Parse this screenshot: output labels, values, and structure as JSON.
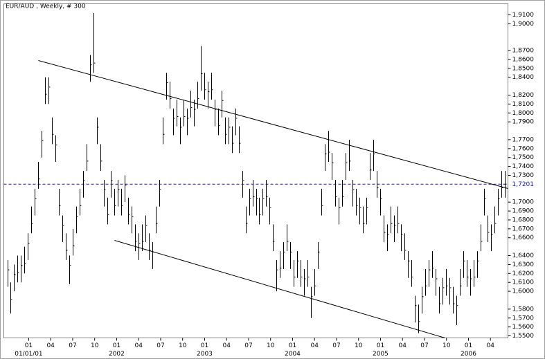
{
  "chart_data": {
    "type": "ohlc",
    "title": "EUR/AUD , Weekly, # 300",
    "color": "#000000",
    "xlim": [
      2000.717,
      2006.449
    ],
    "ylim": [
      1.5477,
      1.9224
    ],
    "xticks": [
      {
        "value": 2001.0,
        "label": "01"
      },
      {
        "value": 2001.25,
        "label": "04"
      },
      {
        "value": 2001.5,
        "label": "07"
      },
      {
        "value": 2001.75,
        "label": "10"
      },
      {
        "value": 2002.0,
        "label": "01"
      },
      {
        "value": 2002.25,
        "label": "04"
      },
      {
        "value": 2002.5,
        "label": "07"
      },
      {
        "value": 2002.75,
        "label": "10"
      },
      {
        "value": 2003.0,
        "label": "01"
      },
      {
        "value": 2003.25,
        "label": "04"
      },
      {
        "value": 2003.5,
        "label": "07"
      },
      {
        "value": 2003.75,
        "label": "10"
      },
      {
        "value": 2004.0,
        "label": "01"
      },
      {
        "value": 2004.25,
        "label": "04"
      },
      {
        "value": 2004.5,
        "label": "07"
      },
      {
        "value": 2004.75,
        "label": "10"
      },
      {
        "value": 2005.0,
        "label": "01"
      },
      {
        "value": 2005.25,
        "label": "04"
      },
      {
        "value": 2005.5,
        "label": "07"
      },
      {
        "value": 2005.75,
        "label": "10"
      },
      {
        "value": 2006.0,
        "label": "01"
      },
      {
        "value": 2006.25,
        "label": "04"
      }
    ],
    "xticks_major": [
      {
        "value": 2001.0,
        "label": "01/01/01"
      },
      {
        "value": 2002.0,
        "label": "2002"
      },
      {
        "value": 2003.0,
        "label": "2003"
      },
      {
        "value": 2004.0,
        "label": "2004"
      },
      {
        "value": 2005.0,
        "label": "2005"
      },
      {
        "value": 2006.0,
        "label": "2006"
      }
    ],
    "yticks": [
      {
        "value": 1.55,
        "label": "1,5500"
      },
      {
        "value": 1.56,
        "label": "1,5600"
      },
      {
        "value": 1.57,
        "label": "1,5700"
      },
      {
        "value": 1.58,
        "label": "1,5800"
      },
      {
        "value": 1.6,
        "label": "1,6000"
      },
      {
        "value": 1.61,
        "label": "1,6100"
      },
      {
        "value": 1.62,
        "label": "1,6200"
      },
      {
        "value": 1.63,
        "label": "1,6300"
      },
      {
        "value": 1.64,
        "label": "1,6400"
      },
      {
        "value": 1.66,
        "label": "1,6600"
      },
      {
        "value": 1.67,
        "label": "1,6700"
      },
      {
        "value": 1.68,
        "label": "1,6800"
      },
      {
        "value": 1.69,
        "label": "1,6900"
      },
      {
        "value": 1.7,
        "label": "1,7000"
      },
      {
        "value": 1.73,
        "label": "1,7300"
      },
      {
        "value": 1.74,
        "label": "1,7400"
      },
      {
        "value": 1.75,
        "label": "1,7500"
      },
      {
        "value": 1.76,
        "label": "1,7600"
      },
      {
        "value": 1.77,
        "label": "1,7700"
      },
      {
        "value": 1.79,
        "label": "1,7900"
      },
      {
        "value": 1.8,
        "label": "1,8000"
      },
      {
        "value": 1.81,
        "label": "1,8100"
      },
      {
        "value": 1.82,
        "label": "1,8200"
      },
      {
        "value": 1.84,
        "label": "1,8400"
      },
      {
        "value": 1.85,
        "label": "1,8500"
      },
      {
        "value": 1.86,
        "label": "1,8600"
      },
      {
        "value": 1.87,
        "label": "1,8700"
      },
      {
        "value": 1.9,
        "label": "1,9000"
      },
      {
        "value": 1.91,
        "label": "1,9100"
      }
    ],
    "last_price": {
      "value": 1.7201,
      "label": "1,7201",
      "color": "#1a1aa0"
    },
    "trendlines": [
      {
        "x": [
          2001.11,
          2006.449
        ],
        "y": [
          1.8588,
          1.7153
        ]
      },
      {
        "x": [
          2001.976,
          2005.732
        ],
        "y": [
          1.6571,
          1.5477
        ]
      }
    ],
    "high": [
      1.635,
      1.61,
      1.63,
      1.64,
      1.64,
      1.65,
      1.665,
      1.695,
      1.715,
      1.745,
      1.78,
      1.84,
      1.84,
      1.795,
      1.775,
      1.715,
      1.685,
      1.665,
      1.64,
      1.67,
      1.695,
      1.715,
      1.735,
      1.765,
      1.865,
      1.912,
      1.795,
      1.765,
      1.725,
      1.705,
      1.735,
      1.715,
      1.725,
      1.715,
      1.73,
      1.705,
      1.695,
      1.675,
      1.665,
      1.675,
      1.685,
      1.665,
      1.655,
      1.695,
      1.725,
      1.795,
      1.845,
      1.835,
      1.805,
      1.815,
      1.795,
      1.815,
      1.805,
      1.825,
      1.815,
      1.835,
      1.875,
      1.845,
      1.835,
      1.845,
      1.815,
      1.805,
      1.825,
      1.795,
      1.795,
      1.785,
      1.805,
      1.785,
      1.735,
      1.695,
      1.715,
      1.725,
      1.715,
      1.705,
      1.715,
      1.725,
      1.705,
      1.675,
      1.635,
      1.645,
      1.655,
      1.675,
      1.655,
      1.635,
      1.645,
      1.635,
      1.625,
      1.635,
      1.605,
      1.625,
      1.655,
      1.715,
      1.765,
      1.78,
      1.755,
      1.725,
      1.705,
      1.725,
      1.755,
      1.77,
      1.725,
      1.715,
      1.705,
      1.695,
      1.705,
      1.755,
      1.77,
      1.735,
      1.715,
      1.685,
      1.675,
      1.695,
      1.685,
      1.695,
      1.675,
      1.665,
      1.645,
      1.635,
      1.595,
      1.585,
      1.605,
      1.625,
      1.635,
      1.645,
      1.625,
      1.605,
      1.615,
      1.625,
      1.615,
      1.605,
      1.595,
      1.625,
      1.645,
      1.635,
      1.625,
      1.635,
      1.645,
      1.675,
      1.715,
      1.685,
      1.675,
      1.695,
      1.715,
      1.735,
      1.735
    ],
    "low": [
      1.605,
      1.575,
      1.6,
      1.61,
      1.61,
      1.62,
      1.635,
      1.665,
      1.685,
      1.715,
      1.75,
      1.81,
      1.81,
      1.765,
      1.745,
      1.685,
      1.655,
      1.635,
      1.608,
      1.64,
      1.665,
      1.685,
      1.705,
      1.735,
      1.835,
      1.845,
      1.765,
      1.735,
      1.695,
      1.675,
      1.705,
      1.685,
      1.695,
      1.685,
      1.7,
      1.675,
      1.665,
      1.645,
      1.635,
      1.645,
      1.655,
      1.635,
      1.625,
      1.665,
      1.695,
      1.765,
      1.815,
      1.805,
      1.775,
      1.785,
      1.765,
      1.785,
      1.775,
      1.795,
      1.785,
      1.805,
      1.825,
      1.815,
      1.805,
      1.815,
      1.785,
      1.775,
      1.795,
      1.765,
      1.765,
      1.755,
      1.775,
      1.755,
      1.705,
      1.665,
      1.685,
      1.695,
      1.685,
      1.675,
      1.685,
      1.695,
      1.675,
      1.645,
      1.6,
      1.615,
      1.625,
      1.645,
      1.625,
      1.605,
      1.615,
      1.605,
      1.595,
      1.605,
      1.57,
      1.595,
      1.625,
      1.685,
      1.735,
      1.745,
      1.725,
      1.695,
      1.675,
      1.695,
      1.725,
      1.735,
      1.695,
      1.685,
      1.675,
      1.665,
      1.675,
      1.725,
      1.735,
      1.705,
      1.685,
      1.655,
      1.645,
      1.665,
      1.655,
      1.665,
      1.645,
      1.635,
      1.615,
      1.605,
      1.565,
      1.553,
      1.575,
      1.595,
      1.605,
      1.615,
      1.595,
      1.575,
      1.585,
      1.595,
      1.585,
      1.575,
      1.562,
      1.595,
      1.615,
      1.605,
      1.595,
      1.605,
      1.615,
      1.645,
      1.685,
      1.655,
      1.645,
      1.665,
      1.685,
      1.705,
      1.705
    ],
    "close": [
      1.624,
      1.591,
      1.619,
      1.621,
      1.629,
      1.631,
      1.654,
      1.676,
      1.704,
      1.726,
      1.769,
      1.821,
      1.829,
      1.776,
      1.764,
      1.696,
      1.674,
      1.646,
      1.629,
      1.651,
      1.684,
      1.696,
      1.724,
      1.746,
      1.854,
      1.856,
      1.784,
      1.746,
      1.714,
      1.686,
      1.724,
      1.696,
      1.714,
      1.696,
      1.719,
      1.686,
      1.684,
      1.656,
      1.654,
      1.656,
      1.674,
      1.646,
      1.644,
      1.676,
      1.714,
      1.776,
      1.834,
      1.816,
      1.794,
      1.796,
      1.784,
      1.796,
      1.794,
      1.806,
      1.804,
      1.816,
      1.844,
      1.826,
      1.824,
      1.826,
      1.804,
      1.786,
      1.814,
      1.776,
      1.784,
      1.766,
      1.794,
      1.766,
      1.724,
      1.676,
      1.704,
      1.706,
      1.704,
      1.686,
      1.704,
      1.706,
      1.694,
      1.656,
      1.624,
      1.626,
      1.644,
      1.656,
      1.644,
      1.616,
      1.634,
      1.616,
      1.614,
      1.616,
      1.594,
      1.606,
      1.644,
      1.696,
      1.754,
      1.756,
      1.744,
      1.706,
      1.694,
      1.706,
      1.744,
      1.746,
      1.714,
      1.696,
      1.694,
      1.676,
      1.694,
      1.736,
      1.754,
      1.716,
      1.704,
      1.666,
      1.664,
      1.676,
      1.674,
      1.676,
      1.664,
      1.646,
      1.634,
      1.616,
      1.584,
      1.566,
      1.594,
      1.606,
      1.624,
      1.626,
      1.614,
      1.586,
      1.604,
      1.606,
      1.604,
      1.586,
      1.584,
      1.606,
      1.634,
      1.616,
      1.614,
      1.616,
      1.634,
      1.656,
      1.704,
      1.666,
      1.664,
      1.676,
      1.704,
      1.716,
      1.7201
    ]
  }
}
